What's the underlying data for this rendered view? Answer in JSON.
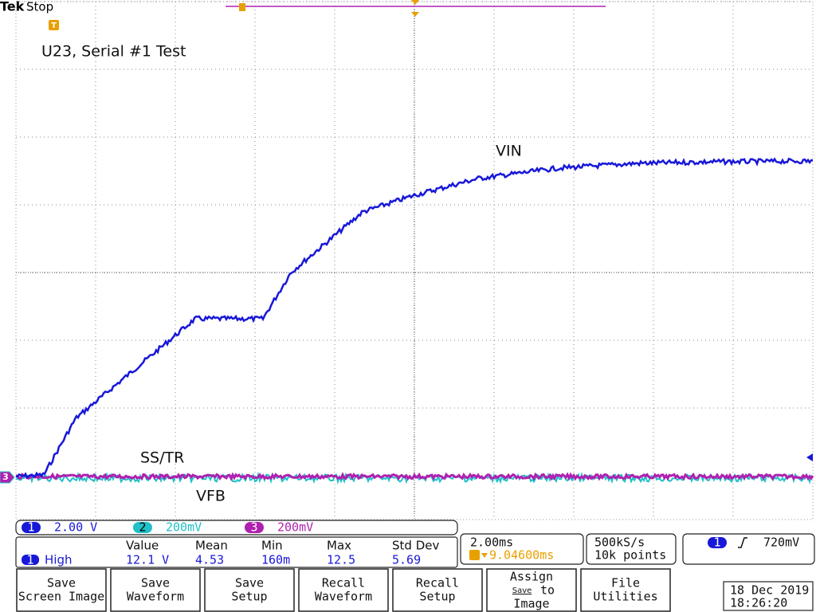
{
  "header": {
    "brand": "Tek",
    "status": "Stop"
  },
  "annotations": {
    "title": "U23, Serial #1 Test",
    "vin": "VIN",
    "sstr": "SS/TR",
    "vfb": "VFB"
  },
  "markers": {
    "trace3": "3",
    "trigger": "T"
  },
  "channels": [
    {
      "number": "1",
      "scale": "2.00 V"
    },
    {
      "number": "2",
      "scale": "200mV"
    },
    {
      "number": "3",
      "scale": "200mV"
    }
  ],
  "measurement": {
    "channel": "1",
    "label": "High",
    "columns": [
      {
        "name": "Value",
        "value": "12.1 V"
      },
      {
        "name": "Mean",
        "value": "4.53"
      },
      {
        "name": "Min",
        "value": "160m"
      },
      {
        "name": "Max",
        "value": "12.5"
      },
      {
        "name": "Std Dev",
        "value": "5.69"
      }
    ]
  },
  "timebase": {
    "scale": "2.00ms",
    "position": "9.04600ms"
  },
  "acquisition": {
    "rate": "500kS/s",
    "length": "10k points"
  },
  "trigger": {
    "channel": "1",
    "level": "720mV"
  },
  "menu": [
    {
      "lines": [
        "Save",
        "Screen Image"
      ]
    },
    {
      "lines": [
        "Save",
        "Waveform"
      ]
    },
    {
      "lines": [
        "Save",
        "Setup"
      ]
    },
    {
      "lines": [
        "Recall",
        "Waveform"
      ]
    },
    {
      "lines": [
        "Recall",
        "Setup"
      ]
    },
    {
      "lines": [
        "Assign",
        "Save",
        "to",
        "Image"
      ]
    },
    {
      "lines": [
        "File",
        "Utilities"
      ]
    }
  ],
  "datetime": {
    "date": "18 Dec 2019",
    "time": "18:26:20"
  }
}
